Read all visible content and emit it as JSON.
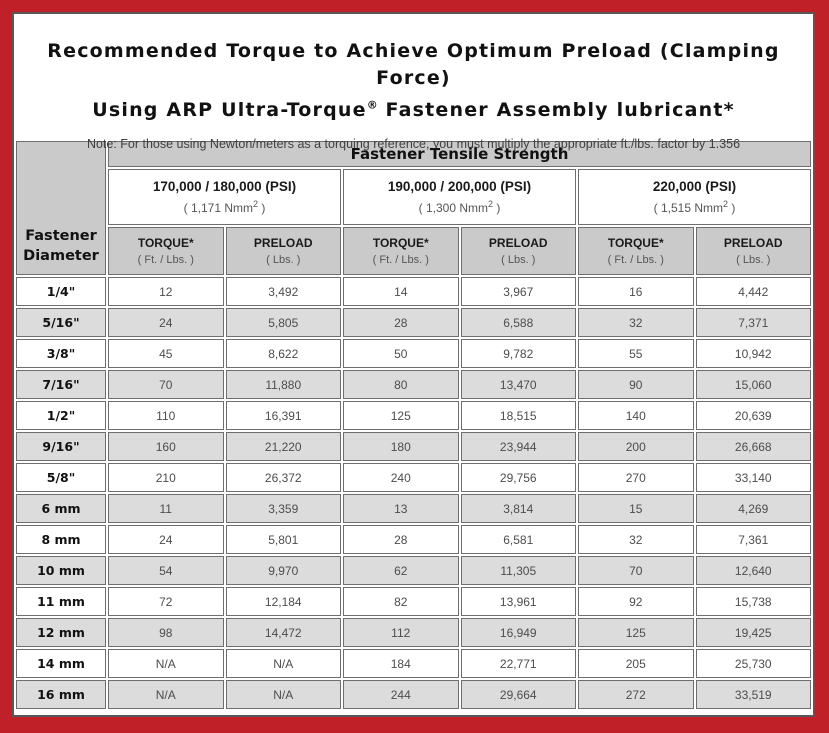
{
  "colors": {
    "frame_red": "#c02128",
    "inner_border": "#58585a",
    "header_gray": "#cacaca",
    "stripe_gray": "#dcdcdc"
  },
  "title": {
    "line1": "Recommended Torque to Achieve Optimum Preload (Clamping Force)",
    "line2_pre": "Using ARP Ultra-Torque",
    "line2_sup": "®",
    "line2_post": " Fastener Assembly lubricant*",
    "note": "Note: For those using Newton/meters as a torquing reference, you must multiply the appropriate ft./lbs. factor by 1.356"
  },
  "table": {
    "corner_header": {
      "line1": "Fastener",
      "line2": "Diameter"
    },
    "main_header": "Fastener Tensile Strength",
    "nmm_sup": "2",
    "nmm_close": " )",
    "groups": [
      {
        "psi": "170,000 / 180,000 (PSI)",
        "nmm": "( 1,171 Nmm"
      },
      {
        "psi": "190,000 / 200,000 (PSI)",
        "nmm": "( 1,300 Nmm"
      },
      {
        "psi": "220,000 (PSI)",
        "nmm": "( 1,515 Nmm"
      }
    ],
    "sub_headers": {
      "torque_label": "TORQUE*",
      "torque_unit": "( Ft. / Lbs. )",
      "preload_label": "PRELOAD",
      "preload_unit": "( Lbs. )"
    },
    "rows": [
      {
        "diameter": "1/4\"",
        "values": [
          "12",
          "3,492",
          "14",
          "3,967",
          "16",
          "4,442"
        ]
      },
      {
        "diameter": "5/16\"",
        "values": [
          "24",
          "5,805",
          "28",
          "6,588",
          "32",
          "7,371"
        ]
      },
      {
        "diameter": "3/8\"",
        "values": [
          "45",
          "8,622",
          "50",
          "9,782",
          "55",
          "10,942"
        ]
      },
      {
        "diameter": "7/16\"",
        "values": [
          "70",
          "11,880",
          "80",
          "13,470",
          "90",
          "15,060"
        ]
      },
      {
        "diameter": "1/2\"",
        "values": [
          "110",
          "16,391",
          "125",
          "18,515",
          "140",
          "20,639"
        ]
      },
      {
        "diameter": "9/16\"",
        "values": [
          "160",
          "21,220",
          "180",
          "23,944",
          "200",
          "26,668"
        ]
      },
      {
        "diameter": "5/8\"",
        "values": [
          "210",
          "26,372",
          "240",
          "29,756",
          "270",
          "33,140"
        ]
      },
      {
        "diameter": "6 mm",
        "values": [
          "11",
          "3,359",
          "13",
          "3,814",
          "15",
          "4,269"
        ]
      },
      {
        "diameter": "8 mm",
        "values": [
          "24",
          "5,801",
          "28",
          "6,581",
          "32",
          "7,361"
        ]
      },
      {
        "diameter": "10 mm",
        "values": [
          "54",
          "9,970",
          "62",
          "11,305",
          "70",
          "12,640"
        ]
      },
      {
        "diameter": "11 mm",
        "values": [
          "72",
          "12,184",
          "82",
          "13,961",
          "92",
          "15,738"
        ]
      },
      {
        "diameter": "12 mm",
        "values": [
          "98",
          "14,472",
          "112",
          "16,949",
          "125",
          "19,425"
        ]
      },
      {
        "diameter": "14 mm",
        "values": [
          "N/A",
          "N/A",
          "184",
          "22,771",
          "205",
          "25,730"
        ]
      },
      {
        "diameter": "16 mm",
        "values": [
          "N/A",
          "N/A",
          "244",
          "29,664",
          "272",
          "33,519"
        ]
      }
    ]
  }
}
